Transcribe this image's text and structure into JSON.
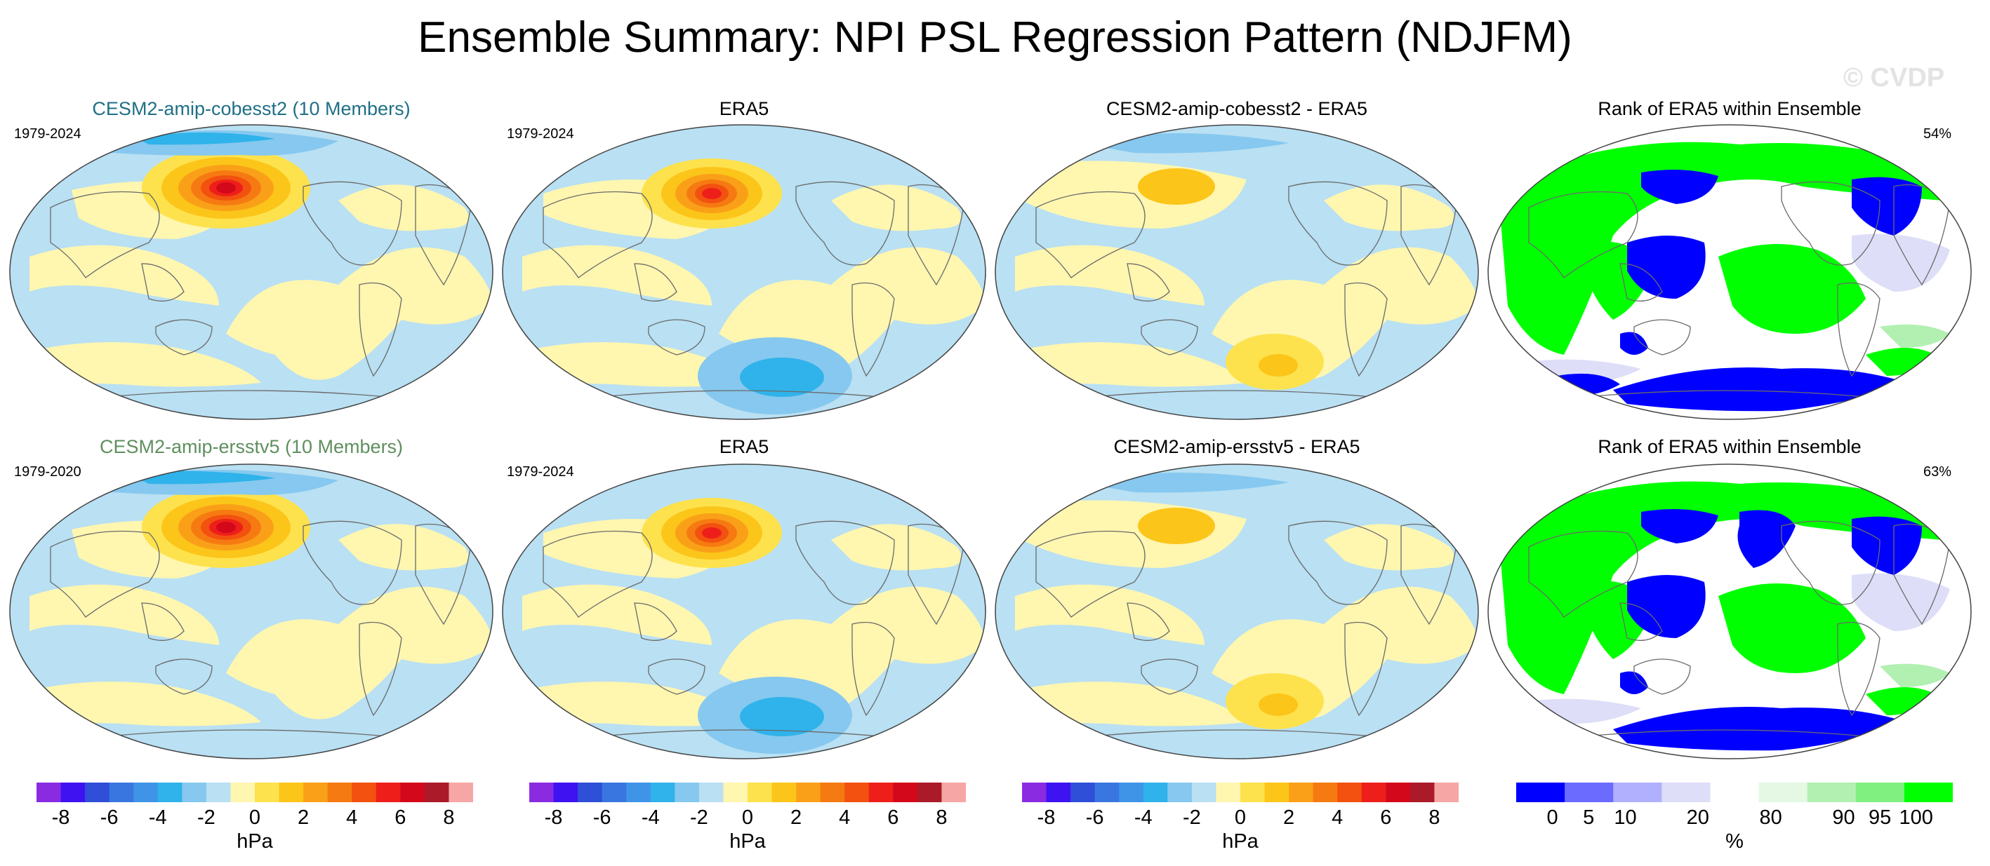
{
  "title": "Ensemble Summary: NPI PSL Regression Pattern (NDJFM)",
  "watermark": "© CVDP",
  "rows": [
    {
      "panels": [
        {
          "title": "CESM2-amip-cobesst2 (10 Members)",
          "title_color": "#1f6f86",
          "left_label": "1979-2024",
          "right_label": ""
        },
        {
          "title": "ERA5",
          "title_color": "#000000",
          "left_label": "1979-2024",
          "right_label": ""
        },
        {
          "title": "CESM2-amip-cobesst2 - ERA5",
          "title_color": "#000000",
          "left_label": "",
          "right_label": ""
        },
        {
          "title": "Rank of ERA5 within Ensemble",
          "title_color": "#000000",
          "left_label": "",
          "right_label": "54%"
        }
      ]
    },
    {
      "panels": [
        {
          "title": "CESM2-amip-ersstv5 (10 Members)",
          "title_color": "#5f8f5f",
          "left_label": "1979-2020",
          "right_label": ""
        },
        {
          "title": "ERA5",
          "title_color": "#000000",
          "left_label": "1979-2024",
          "right_label": ""
        },
        {
          "title": "CESM2-amip-ersstv5 - ERA5",
          "title_color": "#000000",
          "left_label": "",
          "right_label": ""
        },
        {
          "title": "Rank of ERA5 within Ensemble",
          "title_color": "#000000",
          "left_label": "",
          "right_label": "63%"
        }
      ]
    }
  ],
  "chart_data": {
    "type": "heatmap",
    "projection": "Robinson (Pacific-centered)",
    "psl_colorbar": {
      "units": "hPa",
      "ticks": [
        "-8",
        "-6",
        "-4",
        "-2",
        "0",
        "2",
        "4",
        "6",
        "8"
      ],
      "tick_values": [
        -8,
        -6,
        -4,
        -2,
        0,
        2,
        4,
        6,
        8
      ],
      "range": [
        -9,
        9
      ],
      "colors": [
        "#8a2be2",
        "#3f12f2",
        "#2f4fd8",
        "#3a76e0",
        "#3f94e8",
        "#2fb3ea",
        "#86c8ef",
        "#b9e0f3",
        "#fff6b0",
        "#fde24d",
        "#fcc519",
        "#f9a018",
        "#f67a12",
        "#f2510f",
        "#ee1f1b",
        "#d3081a",
        "#ab1a28",
        "#f7a6a6"
      ]
    },
    "rank_colorbar": {
      "units": "%",
      "ticks": [
        "0",
        "5",
        "10",
        "20",
        "80",
        "90",
        "95",
        "100"
      ],
      "tick_values": [
        0,
        5,
        10,
        20,
        80,
        90,
        95,
        100
      ],
      "colors": [
        "#0000ff",
        "#6b6bff",
        "#b0b0ff",
        "#dedef8",
        "#ffffff",
        "#e4f8e4",
        "#b2f0b2",
        "#80f080",
        "#00ff00"
      ]
    },
    "summary": [
      {
        "panel": "Rank of ERA5 within Ensemble (row 1)",
        "value": "54%"
      },
      {
        "panel": "Rank of ERA5 within Ensemble (row 2)",
        "value": "63%"
      }
    ]
  }
}
